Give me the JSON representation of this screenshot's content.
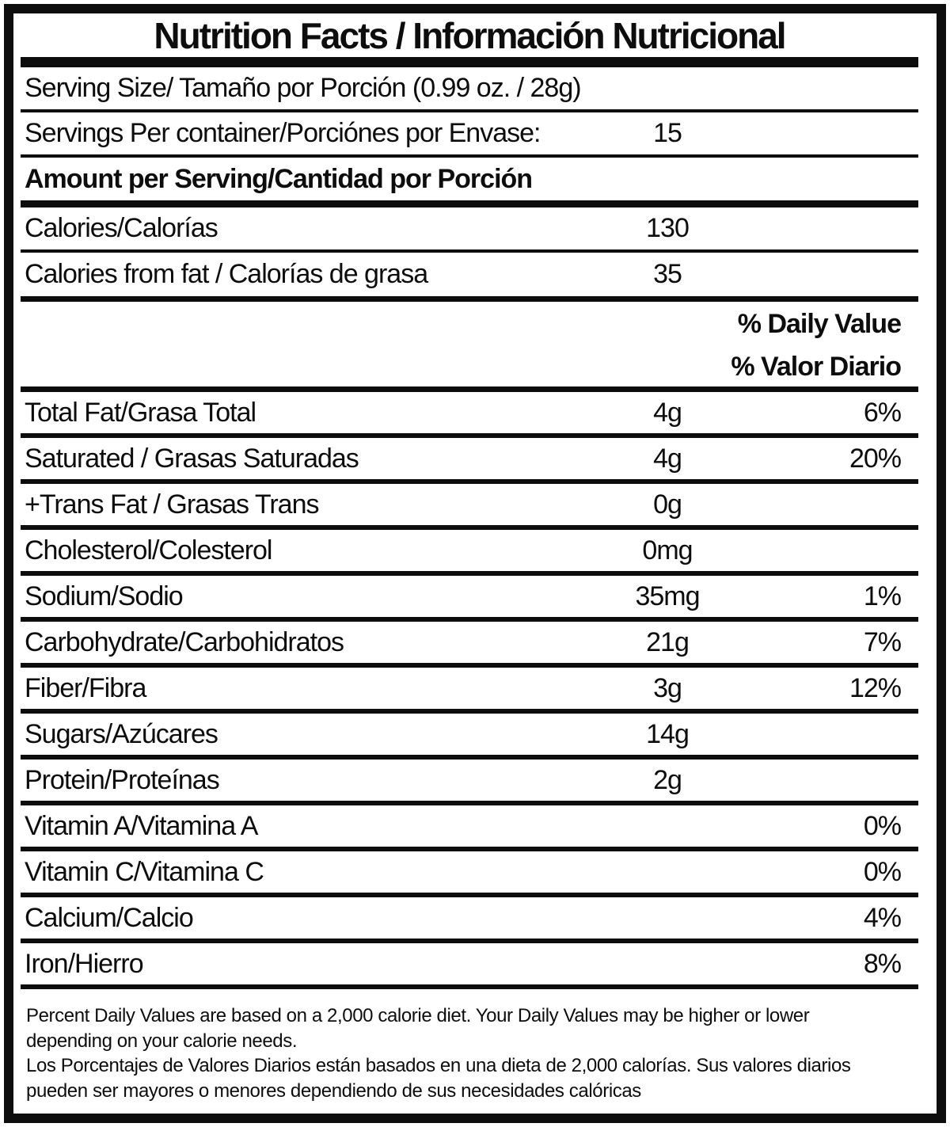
{
  "colors": {
    "ink": "#0d0d0d",
    "background": "#ffffff"
  },
  "label": {
    "title": "Nutrition Facts / Información Nutricional",
    "serving_size": "Serving Size/ Tamaño por Porción  (0.99 oz. / 28g)",
    "servings_per_container": {
      "label": "Servings Per container/Porciónes por Envase:",
      "value": "15"
    },
    "amount_per_serving": "Amount per Serving/Cantidad por Porción",
    "calories": {
      "label": "Calories/Calorías",
      "value": "130"
    },
    "calories_from_fat": {
      "label": "Calories from fat / Calorías de grasa",
      "value": "35"
    },
    "daily_value_header_en": "% Daily Value",
    "daily_value_header_es": "% Valor Diario",
    "nutrients": [
      {
        "label": "Total Fat/Grasa Total",
        "amount": "4g",
        "dv": "6%"
      },
      {
        "label": "Saturated / Grasas Saturadas",
        "amount": "4g",
        "dv": "20%"
      },
      {
        "label": "+Trans Fat / Grasas Trans",
        "amount": "0g",
        "dv": ""
      },
      {
        "label": "Cholesterol/Colesterol",
        "amount": "0mg",
        "dv": ""
      },
      {
        "label": "Sodium/Sodio",
        "amount": "35mg",
        "dv": "1%"
      },
      {
        "label": "Carbohydrate/Carbohidratos",
        "amount": "21g",
        "dv": "7%"
      },
      {
        "label": "Fiber/Fibra",
        "amount": "3g",
        "dv": "12%"
      },
      {
        "label": "Sugars/Azúcares",
        "amount": "14g",
        "dv": ""
      },
      {
        "label": "Protein/Proteínas",
        "amount": "2g",
        "dv": ""
      },
      {
        "label": "Vitamin A/Vitamina A",
        "amount": "",
        "dv": "0%"
      },
      {
        "label": "Vitamin C/Vitamina C",
        "amount": "",
        "dv": "0%"
      },
      {
        "label": "Calcium/Calcio",
        "amount": "",
        "dv": "4%"
      },
      {
        "label": "Iron/Hierro",
        "amount": "",
        "dv": "8%"
      }
    ],
    "footnote_en": "Percent Daily Values are based on a 2,000 calorie diet. Your Daily Values may be higher or lower depending on your calorie needs.",
    "footnote_es": "Los Porcentajes de Valores Diarios están basados en una dieta de 2,000 calorías. Sus valores diarios pueden ser mayores o menores dependiendo de sus necesidades calóricas"
  }
}
